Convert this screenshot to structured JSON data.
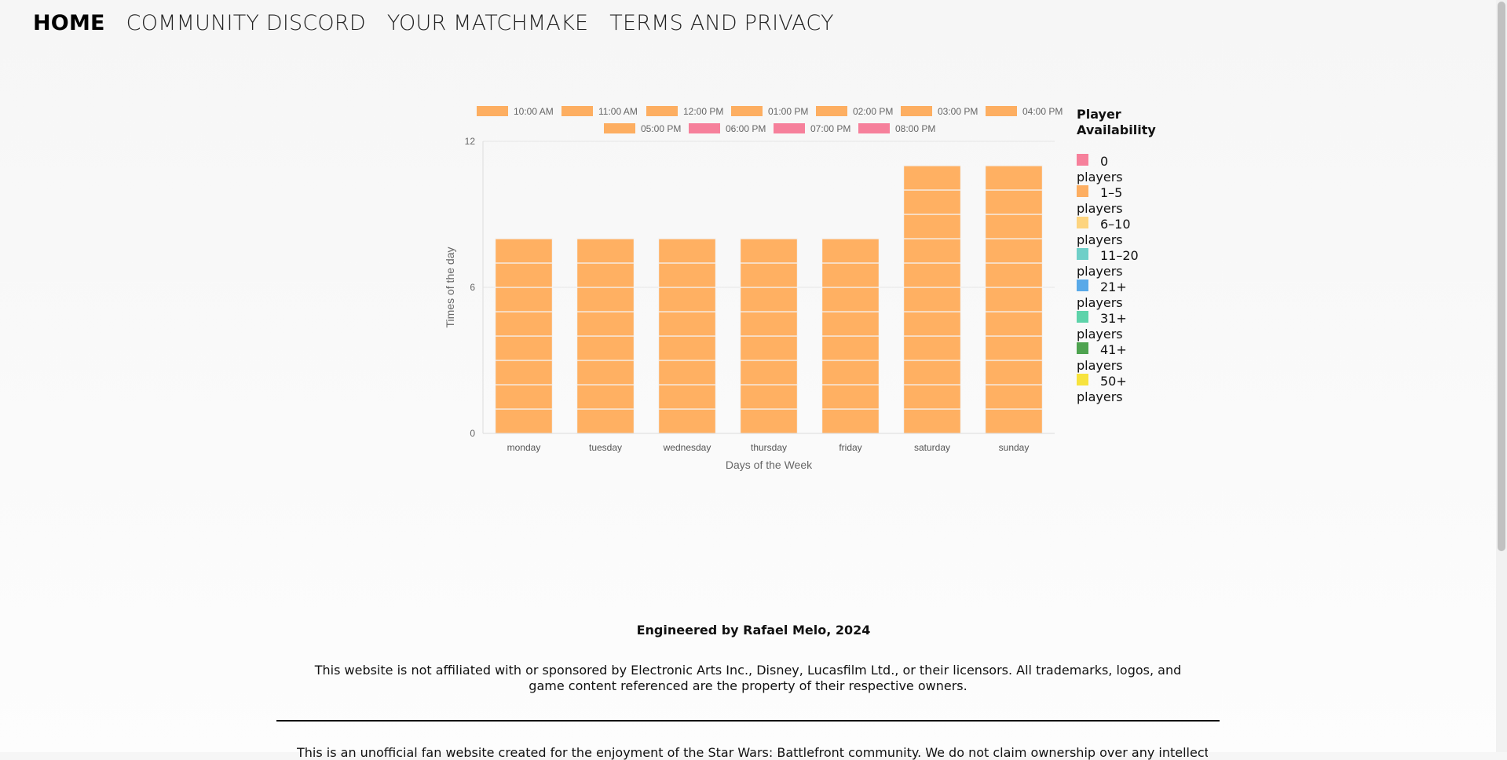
{
  "nav": {
    "home": "HOME",
    "discord": "COMMUNITY DISCORD",
    "matchmake": "YOUR MATCHMAKE",
    "terms": "TERMS AND PRIVACY"
  },
  "colors": {
    "orange": "#fdae61",
    "pink": "#f6809b",
    "bar": "#ffb062"
  },
  "chart_data": {
    "type": "bar",
    "stacked": true,
    "categories": [
      "monday",
      "tuesday",
      "wednesday",
      "thursday",
      "friday",
      "saturday",
      "sunday"
    ],
    "xlabel": "Days of the Week",
    "ylabel": "Times of the day",
    "ylim": [
      0,
      12
    ],
    "yticks": [
      0,
      6,
      12
    ],
    "grid": true,
    "legend_position": "top",
    "series": [
      {
        "name": "10:00 AM",
        "color": "#fdae61",
        "values": [
          1,
          1,
          1,
          1,
          1,
          1,
          1
        ]
      },
      {
        "name": "11:00 AM",
        "color": "#fdae61",
        "values": [
          1,
          1,
          1,
          1,
          1,
          1,
          1
        ]
      },
      {
        "name": "12:00 PM",
        "color": "#fdae61",
        "values": [
          1,
          1,
          1,
          1,
          1,
          1,
          1
        ]
      },
      {
        "name": "01:00 PM",
        "color": "#fdae61",
        "values": [
          1,
          1,
          1,
          1,
          1,
          1,
          1
        ]
      },
      {
        "name": "02:00 PM",
        "color": "#fdae61",
        "values": [
          1,
          1,
          1,
          1,
          1,
          1,
          1
        ]
      },
      {
        "name": "03:00 PM",
        "color": "#fdae61",
        "values": [
          1,
          1,
          1,
          1,
          1,
          1,
          1
        ]
      },
      {
        "name": "04:00 PM",
        "color": "#fdae61",
        "values": [
          1,
          1,
          1,
          1,
          1,
          1,
          1
        ]
      },
      {
        "name": "05:00 PM",
        "color": "#fdae61",
        "values": [
          1,
          1,
          1,
          1,
          1,
          1,
          1
        ]
      },
      {
        "name": "06:00 PM",
        "color": "#f6809b",
        "values": [
          0,
          0,
          0,
          0,
          0,
          1,
          1
        ]
      },
      {
        "name": "07:00 PM",
        "color": "#f6809b",
        "values": [
          0,
          0,
          0,
          0,
          0,
          1,
          1
        ]
      },
      {
        "name": "08:00 PM",
        "color": "#f6809b",
        "values": [
          0,
          0,
          0,
          0,
          0,
          1,
          1
        ]
      }
    ],
    "bar_fill_color": "#ffb062"
  },
  "availability": {
    "title": "Player Availability",
    "items": [
      {
        "range": "0",
        "unit": "players",
        "color": "#f6809b"
      },
      {
        "range": "1–5",
        "unit": "players",
        "color": "#fdae61"
      },
      {
        "range": "6–10",
        "unit": "players",
        "color": "#fdd47f"
      },
      {
        "range": "11–20",
        "unit": "players",
        "color": "#6fcfc8"
      },
      {
        "range": "21+",
        "unit": "players",
        "color": "#59a9e8"
      },
      {
        "range": "31+",
        "unit": "players",
        "color": "#5ed3aa"
      },
      {
        "range": "41+",
        "unit": "players",
        "color": "#4ea350"
      },
      {
        "range": "50+",
        "unit": "players",
        "color": "#f7e33e"
      }
    ]
  },
  "footer": {
    "credit": "Engineered by Rafael Melo, 2024",
    "disclaimer": "This website is not affiliated with or sponsored by Electronic Arts Inc., Disney, Lucasfilm Ltd., or their licensors. All trademarks, logos, and game content referenced are the property of their respective owners.",
    "cut_text": "This is an unofficial fan website created for the enjoyment of the Star Wars: Battlefront community. We do not claim ownership over any intellectual property."
  }
}
